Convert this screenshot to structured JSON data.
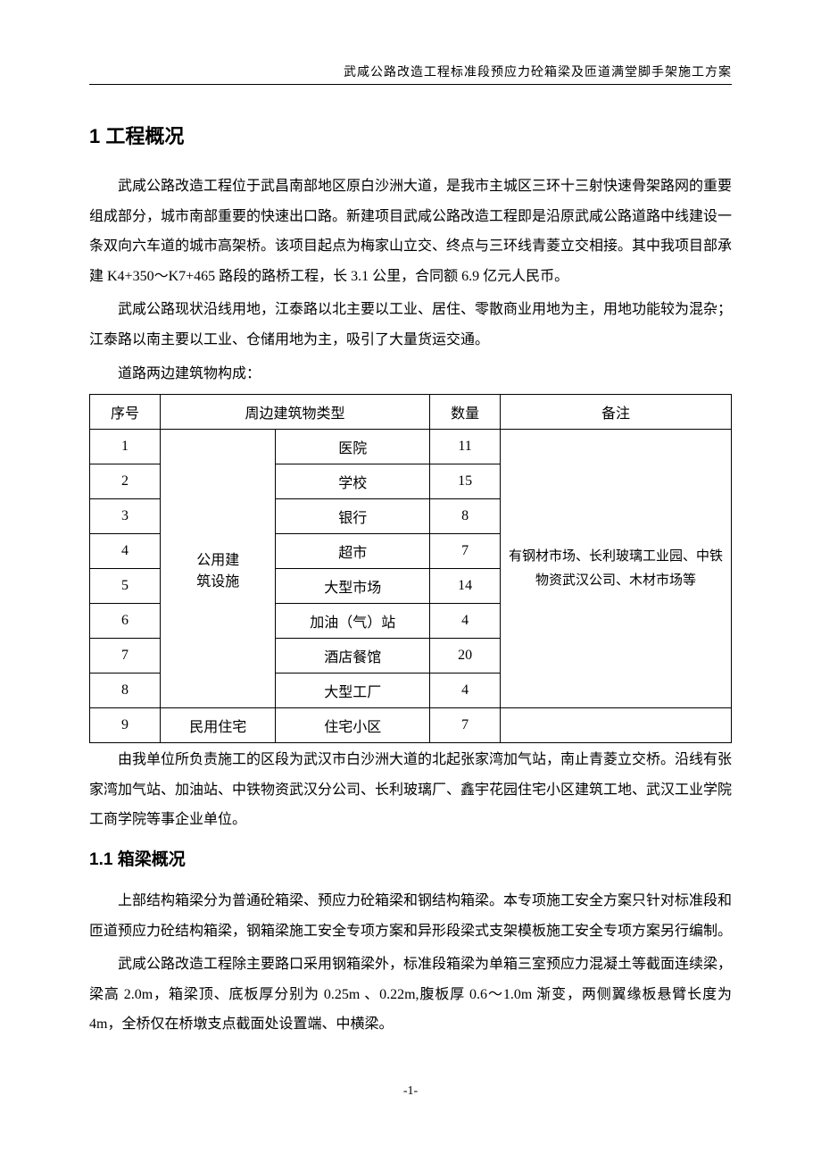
{
  "header": {
    "title": "武咸公路改造工程标准段预应力砼箱梁及匝道满堂脚手架施工方案"
  },
  "section1": {
    "title": "1 工程概况",
    "p1": "武咸公路改造工程位于武昌南部地区原白沙洲大道，是我市主城区三环十三射快速骨架路网的重要组成部分，城市南部重要的快速出口路。新建项目武咸公路改造工程即是沿原武咸公路道路中线建设一条双向六车道的城市高架桥。该项目起点为梅家山立交、终点与三环线青菱立交相接。其中我项目部承建 K4+350～K7+465 路段的路桥工程，长 3.1 公里，合同额 6.9 亿元人民币。",
    "p2": "武咸公路现状沿线用地，江泰路以北主要以工业、居住、零散商业用地为主，用地功能较为混杂；江泰路以南主要以工业、仓储用地为主，吸引了大量货运交通。",
    "p3": "道路两边建筑物构成：",
    "p4": "由我单位所负责施工的区段为武汉市白沙洲大道的北起张家湾加气站，南止青菱立交桥。沿线有张家湾加气站、加油站、中铁物资武汉分公司、长利玻璃厂、鑫宇花园住宅小区建筑工地、武汉工业学院工商学院等事企业单位。"
  },
  "table1": {
    "headers": {
      "seq": "序号",
      "type": "周边建筑物类型",
      "qty": "数量",
      "note": "备注"
    },
    "type_public": "公用建\n筑设施",
    "type_residential": "民用住宅",
    "rows": [
      {
        "seq": "1",
        "sub": "医院",
        "qty": "11"
      },
      {
        "seq": "2",
        "sub": "学校",
        "qty": "15"
      },
      {
        "seq": "3",
        "sub": "银行",
        "qty": "8"
      },
      {
        "seq": "4",
        "sub": "超市",
        "qty": "7"
      },
      {
        "seq": "5",
        "sub": "大型市场",
        "qty": "14"
      },
      {
        "seq": "6",
        "sub": "加油（气）站",
        "qty": "4"
      },
      {
        "seq": "7",
        "sub": "酒店餐馆",
        "qty": "20"
      },
      {
        "seq": "8",
        "sub": "大型工厂",
        "qty": "4"
      },
      {
        "seq": "9",
        "sub": "住宅小区",
        "qty": "7"
      }
    ],
    "note_text": "有钢材市场、长利玻璃工业园、中铁物资武汉公司、木材市场等"
  },
  "section1_1": {
    "title": "1.1 箱梁概况",
    "p1": "上部结构箱梁分为普通砼箱梁、预应力砼箱梁和钢结构箱梁。本专项施工安全方案只针对标准段和匝道预应力砼结构箱梁，钢箱梁施工安全专项方案和异形段梁式支架模板施工安全专项方案另行编制。",
    "p2": "武咸公路改造工程除主要路口采用钢箱梁外，标准段箱梁为单箱三室预应力混凝土等截面连续梁，梁高 2.0m，箱梁顶、底板厚分别为 0.25m 、0.22m,腹板厚 0.6～1.0m 渐变，两侧翼缘板悬臂长度为 4m，全桥仅在桥墩支点截面处设置端、中横梁。"
  },
  "footer": {
    "page": "-1-"
  }
}
